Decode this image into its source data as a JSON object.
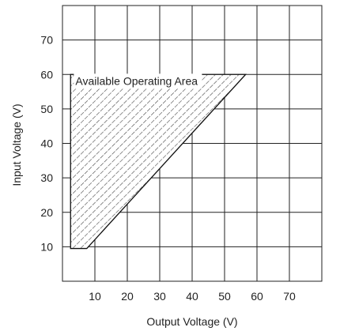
{
  "chart_data": {
    "type": "area",
    "xlabel": "Output Voltage (V)",
    "ylabel": "Input Voltage (V)",
    "xlim": [
      0,
      80
    ],
    "ylim": [
      0,
      80
    ],
    "x_ticks": [
      10,
      20,
      30,
      40,
      50,
      60,
      70
    ],
    "y_ticks": [
      10,
      20,
      30,
      40,
      50,
      60,
      70
    ],
    "grid": true,
    "series": [
      {
        "name": "Available Operating Area",
        "fill": "hatched",
        "polygon": [
          {
            "x": 2.5,
            "y": 60
          },
          {
            "x": 56.5,
            "y": 60
          },
          {
            "x": 7.5,
            "y": 9.5
          },
          {
            "x": 2.5,
            "y": 9.5
          }
        ]
      }
    ],
    "annotations": [
      {
        "text": "Available Operating Area",
        "x": 4,
        "y": 57
      }
    ],
    "colors": {
      "grid": "#222222",
      "hatch": "#333333",
      "outline": "#111111"
    }
  }
}
